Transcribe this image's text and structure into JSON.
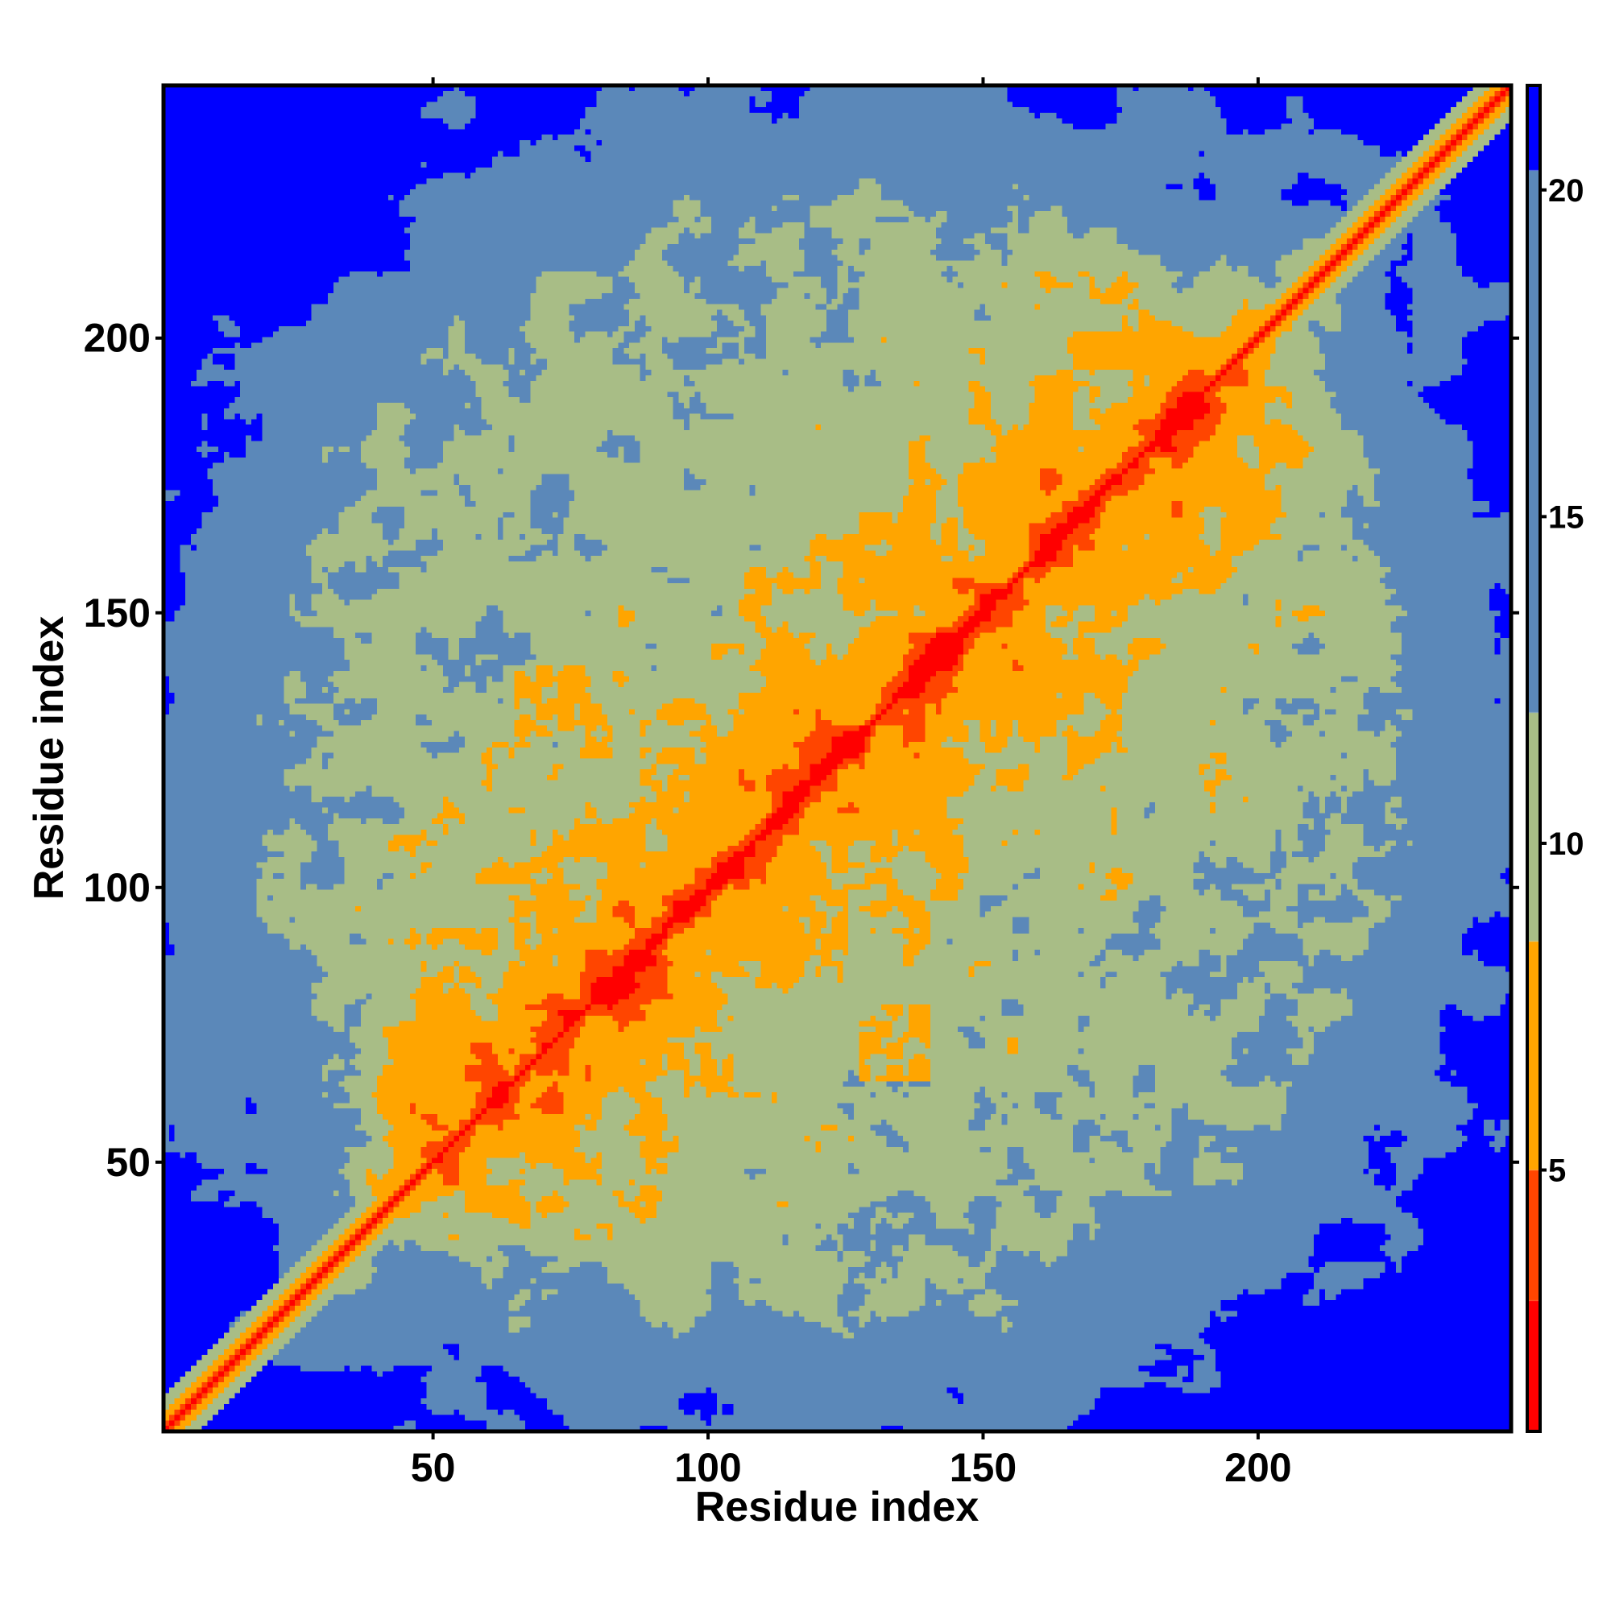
{
  "chart_data": {
    "type": "heatmap",
    "title": "",
    "xlabel": "Residue index",
    "ylabel": "Residue index",
    "n_residues": 246,
    "xlim": [
      1,
      246
    ],
    "ylim": [
      1,
      246
    ],
    "x_ticks": [
      50,
      100,
      150,
      200
    ],
    "y_ticks": [
      50,
      100,
      150,
      200
    ],
    "colorbar": {
      "range": [
        1,
        21.6
      ],
      "ticks": [
        5,
        10,
        15,
        20
      ],
      "bands": [
        {
          "from": 1,
          "to": 3,
          "color": "#ff0000"
        },
        {
          "from": 3,
          "to": 5,
          "color": "#ff4500"
        },
        {
          "from": 5,
          "to": 8.5,
          "color": "#ffa500"
        },
        {
          "from": 8.5,
          "to": 12,
          "color": "#a8bd86"
        },
        {
          "from": 12,
          "to": 20.3,
          "color": "#5b88b9"
        },
        {
          "from": 20.3,
          "to": 21.6,
          "color": "#0000ff"
        }
      ]
    },
    "colors": {
      "far": "#0000ff",
      "mid": "#5b88b9",
      "near": "#a8bd86",
      "contact": "#ffa500",
      "close": "#ff4500",
      "diagonal": "#ff0000"
    },
    "description_features": {
      "diagonal_band": "main diagonal from 1 to 246 with red core and orange/green flanks",
      "secondary_contacts": [
        {
          "x": [
            65,
            75
          ],
          "y": [
            128,
            140
          ],
          "strength": "contact"
        },
        {
          "x": [
            125,
            135
          ],
          "y": [
            150,
            160
          ],
          "strength": "contact"
        },
        {
          "x": [
            160,
            168
          ],
          "y": [
            128,
            140
          ],
          "strength": "contact"
        },
        {
          "x": [
            90,
            100
          ],
          "y": [
            65,
            78
          ],
          "strength": "contact"
        },
        {
          "x": [
            65,
            78
          ],
          "y": [
            88,
            100
          ],
          "strength": "contact"
        },
        {
          "x": [
            115,
            125
          ],
          "y": [
            88,
            100
          ],
          "strength": "contact"
        },
        {
          "x": [
            88,
            98
          ],
          "y": [
            112,
            120
          ],
          "strength": "contact"
        },
        {
          "x": [
            130,
            140
          ],
          "y": [
            68,
            78
          ],
          "strength": "contact"
        },
        {
          "x": [
            135,
            145
          ],
          "y": [
            160,
            168
          ],
          "strength": "contact"
        }
      ]
    }
  }
}
